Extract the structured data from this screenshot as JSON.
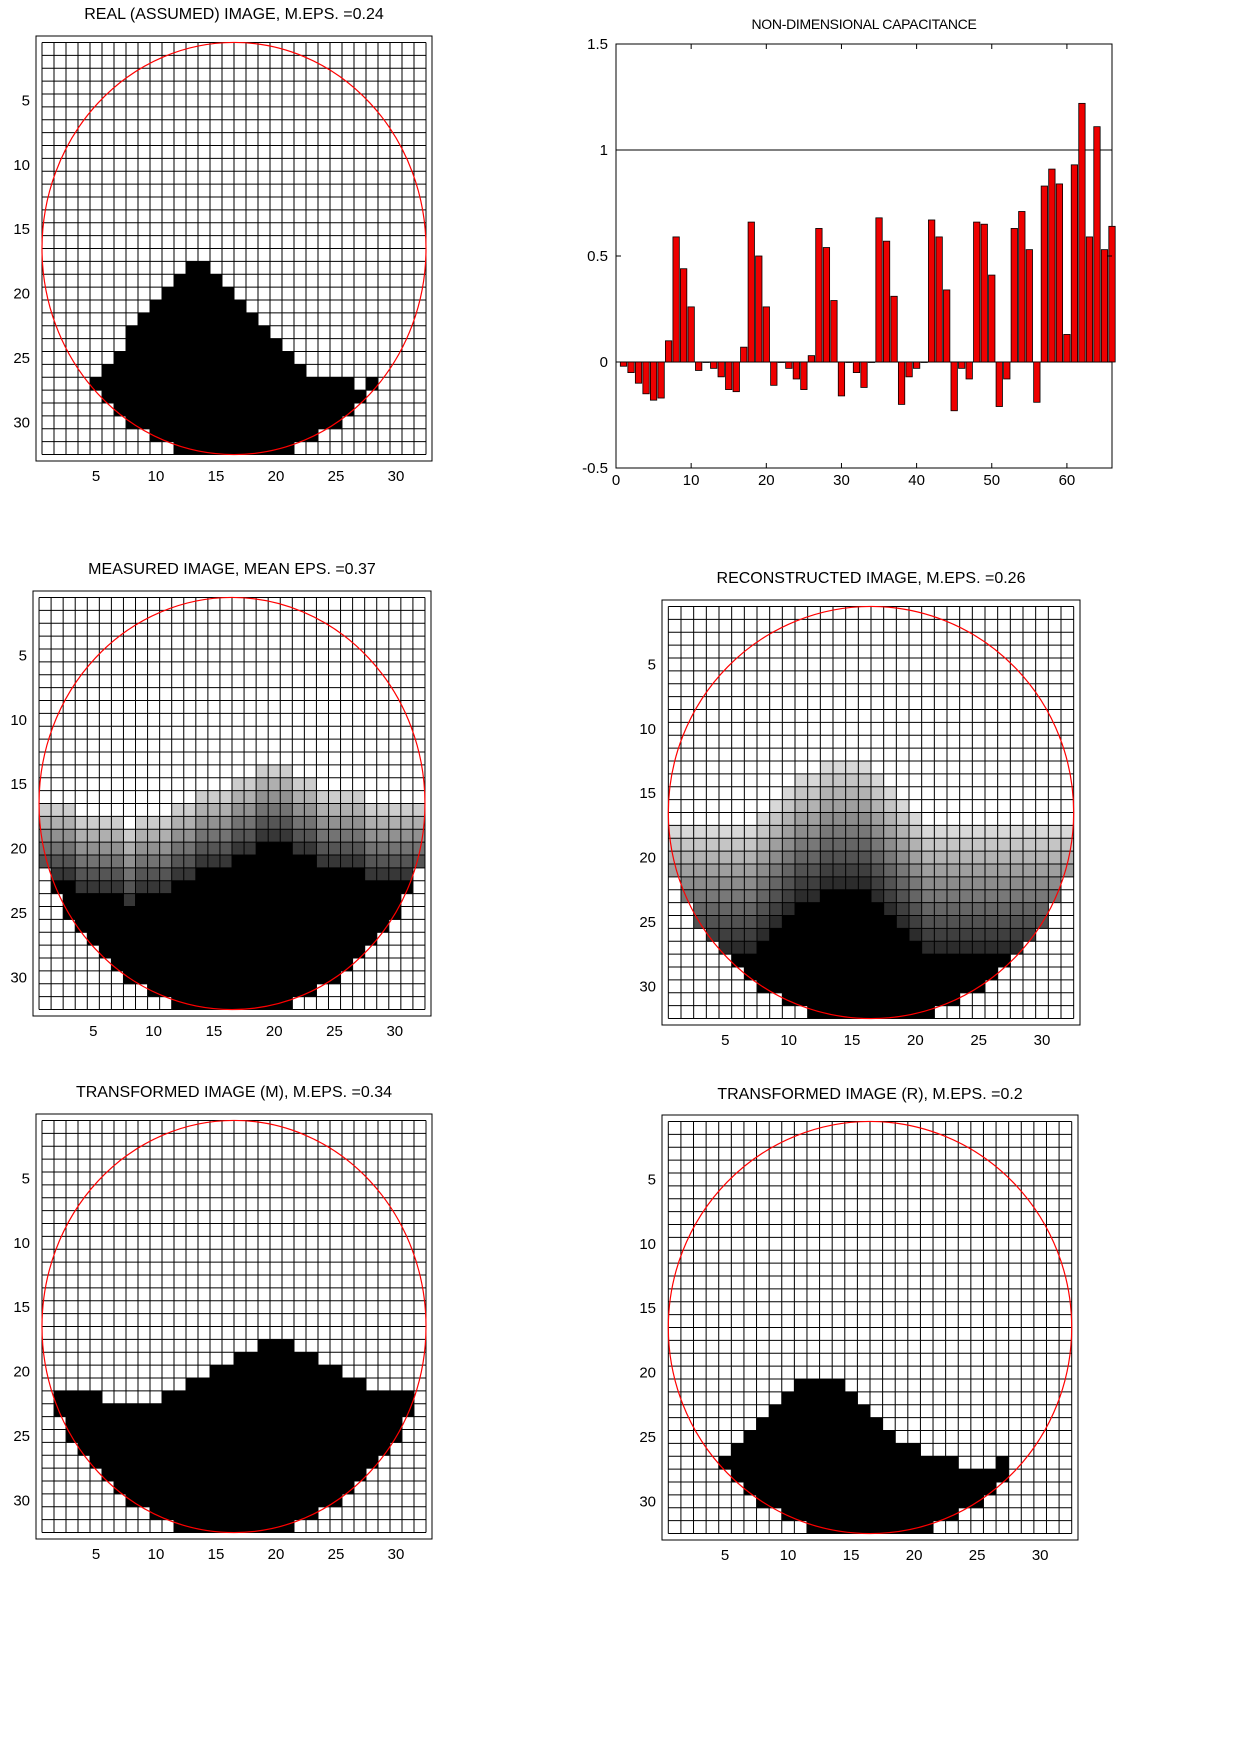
{
  "chart_data": [
    {
      "type": "heatmap",
      "title": "REAL (ASSUMED) IMAGE, M.EPS. =0.24",
      "size": 32,
      "xticks": [
        "5",
        "10",
        "15",
        "20",
        "25",
        "30"
      ],
      "yticks": [
        "5",
        "10",
        "15",
        "20",
        "25",
        "30"
      ],
      "circle_color": "#ff0000",
      "scale": "binary",
      "profile": [
        0,
        0,
        0,
        0,
        27,
        26,
        25,
        23,
        22,
        21,
        20,
        19,
        18,
        18,
        19,
        20,
        21,
        22,
        23,
        24,
        25,
        26,
        27,
        27,
        27,
        27,
        28,
        27,
        27,
        0,
        0,
        0
      ]
    },
    {
      "type": "bar",
      "title": "NON-DIMENSIONAL CAPACITANCE",
      "xlabel": "",
      "ylabel": "",
      "xlim": [
        0,
        66
      ],
      "ylim": [
        -0.5,
        1.5
      ],
      "xticks": [
        "0",
        "10",
        "20",
        "30",
        "40",
        "50",
        "60"
      ],
      "yticks": [
        "-0.5",
        "0",
        "0.5",
        "1",
        "1.5"
      ],
      "reference_line": 1,
      "bar_color": "#ee0000",
      "values": [
        -0.02,
        -0.05,
        -0.1,
        -0.15,
        -0.18,
        -0.17,
        0.1,
        0.59,
        0.44,
        0.26,
        -0.04,
        0,
        -0.03,
        -0.07,
        -0.13,
        -0.14,
        0.07,
        0.66,
        0.5,
        0.26,
        -0.11,
        0,
        -0.03,
        -0.08,
        -0.13,
        0.03,
        0.63,
        0.54,
        0.29,
        -0.16,
        0,
        -0.05,
        -0.12,
        0,
        0.68,
        0.57,
        0.31,
        -0.2,
        -0.07,
        -0.03,
        0,
        0.67,
        0.59,
        0.34,
        -0.23,
        -0.03,
        -0.08,
        0.66,
        0.65,
        0.41,
        -0.21,
        -0.08,
        0.63,
        0.71,
        0.53,
        -0.19,
        0.83,
        0.91,
        0.84,
        0.13,
        0.93,
        1.22,
        0.59,
        1.11,
        0.53,
        0.64
      ]
    },
    {
      "type": "heatmap",
      "title": "MEASURED IMAGE, MEAN EPS. =0.37",
      "size": 32,
      "xticks": [
        "5",
        "10",
        "15",
        "20",
        "25",
        "30"
      ],
      "yticks": [
        "5",
        "10",
        "15",
        "20",
        "25",
        "30"
      ],
      "circle_color": "#ff0000",
      "scale": "grey",
      "profile": [
        23,
        23,
        23,
        24,
        24,
        24,
        24,
        25,
        24,
        24,
        24,
        23,
        23,
        22,
        22,
        22,
        21,
        21,
        20,
        20,
        20,
        21,
        21,
        22,
        22,
        22,
        22,
        23,
        23,
        23,
        23,
        23
      ],
      "band_rows": 6
    },
    {
      "type": "heatmap",
      "title": "RECONSTRUCTED IMAGE, M.EPS. =0.26",
      "size": 32,
      "xticks": [
        "5",
        "10",
        "15",
        "20",
        "25",
        "30"
      ],
      "yticks": [
        "5",
        "10",
        "15",
        "20",
        "25",
        "30"
      ],
      "circle_color": "#ff0000",
      "scale": "grey",
      "profile": [
        28,
        28,
        28,
        28,
        28,
        28,
        28,
        27,
        26,
        25,
        24,
        24,
        23,
        23,
        23,
        23,
        24,
        25,
        26,
        27,
        28,
        28,
        28,
        28,
        28,
        28,
        28,
        28,
        28,
        28,
        28,
        28
      ],
      "band_rows": 10
    },
    {
      "type": "heatmap",
      "title": "TRANSFORMED IMAGE (M), M.EPS. =0.34",
      "size": 32,
      "xticks": [
        "5",
        "10",
        "15",
        "20",
        "25",
        "30"
      ],
      "yticks": [
        "5",
        "10",
        "15",
        "20",
        "25",
        "30"
      ],
      "circle_color": "#ff0000",
      "scale": "binary",
      "profile": [
        22,
        22,
        22,
        22,
        22,
        23,
        23,
        23,
        23,
        23,
        22,
        22,
        21,
        21,
        20,
        20,
        19,
        19,
        18,
        18,
        18,
        19,
        19,
        20,
        20,
        21,
        21,
        22,
        22,
        22,
        22,
        22
      ]
    },
    {
      "type": "heatmap",
      "title": "TRANSFORMED IMAGE (R), M.EPS. =0.2",
      "size": 32,
      "xticks": [
        "5",
        "10",
        "15",
        "20",
        "25",
        "30"
      ],
      "yticks": [
        "5",
        "10",
        "15",
        "20",
        "25",
        "30"
      ],
      "circle_color": "#ff0000",
      "scale": "binary",
      "profile": [
        0,
        0,
        0,
        0,
        27,
        26,
        25,
        24,
        23,
        22,
        21,
        21,
        21,
        21,
        22,
        23,
        24,
        25,
        26,
        26,
        27,
        27,
        27,
        28,
        28,
        28,
        27,
        0,
        0,
        0,
        0,
        0
      ]
    }
  ]
}
